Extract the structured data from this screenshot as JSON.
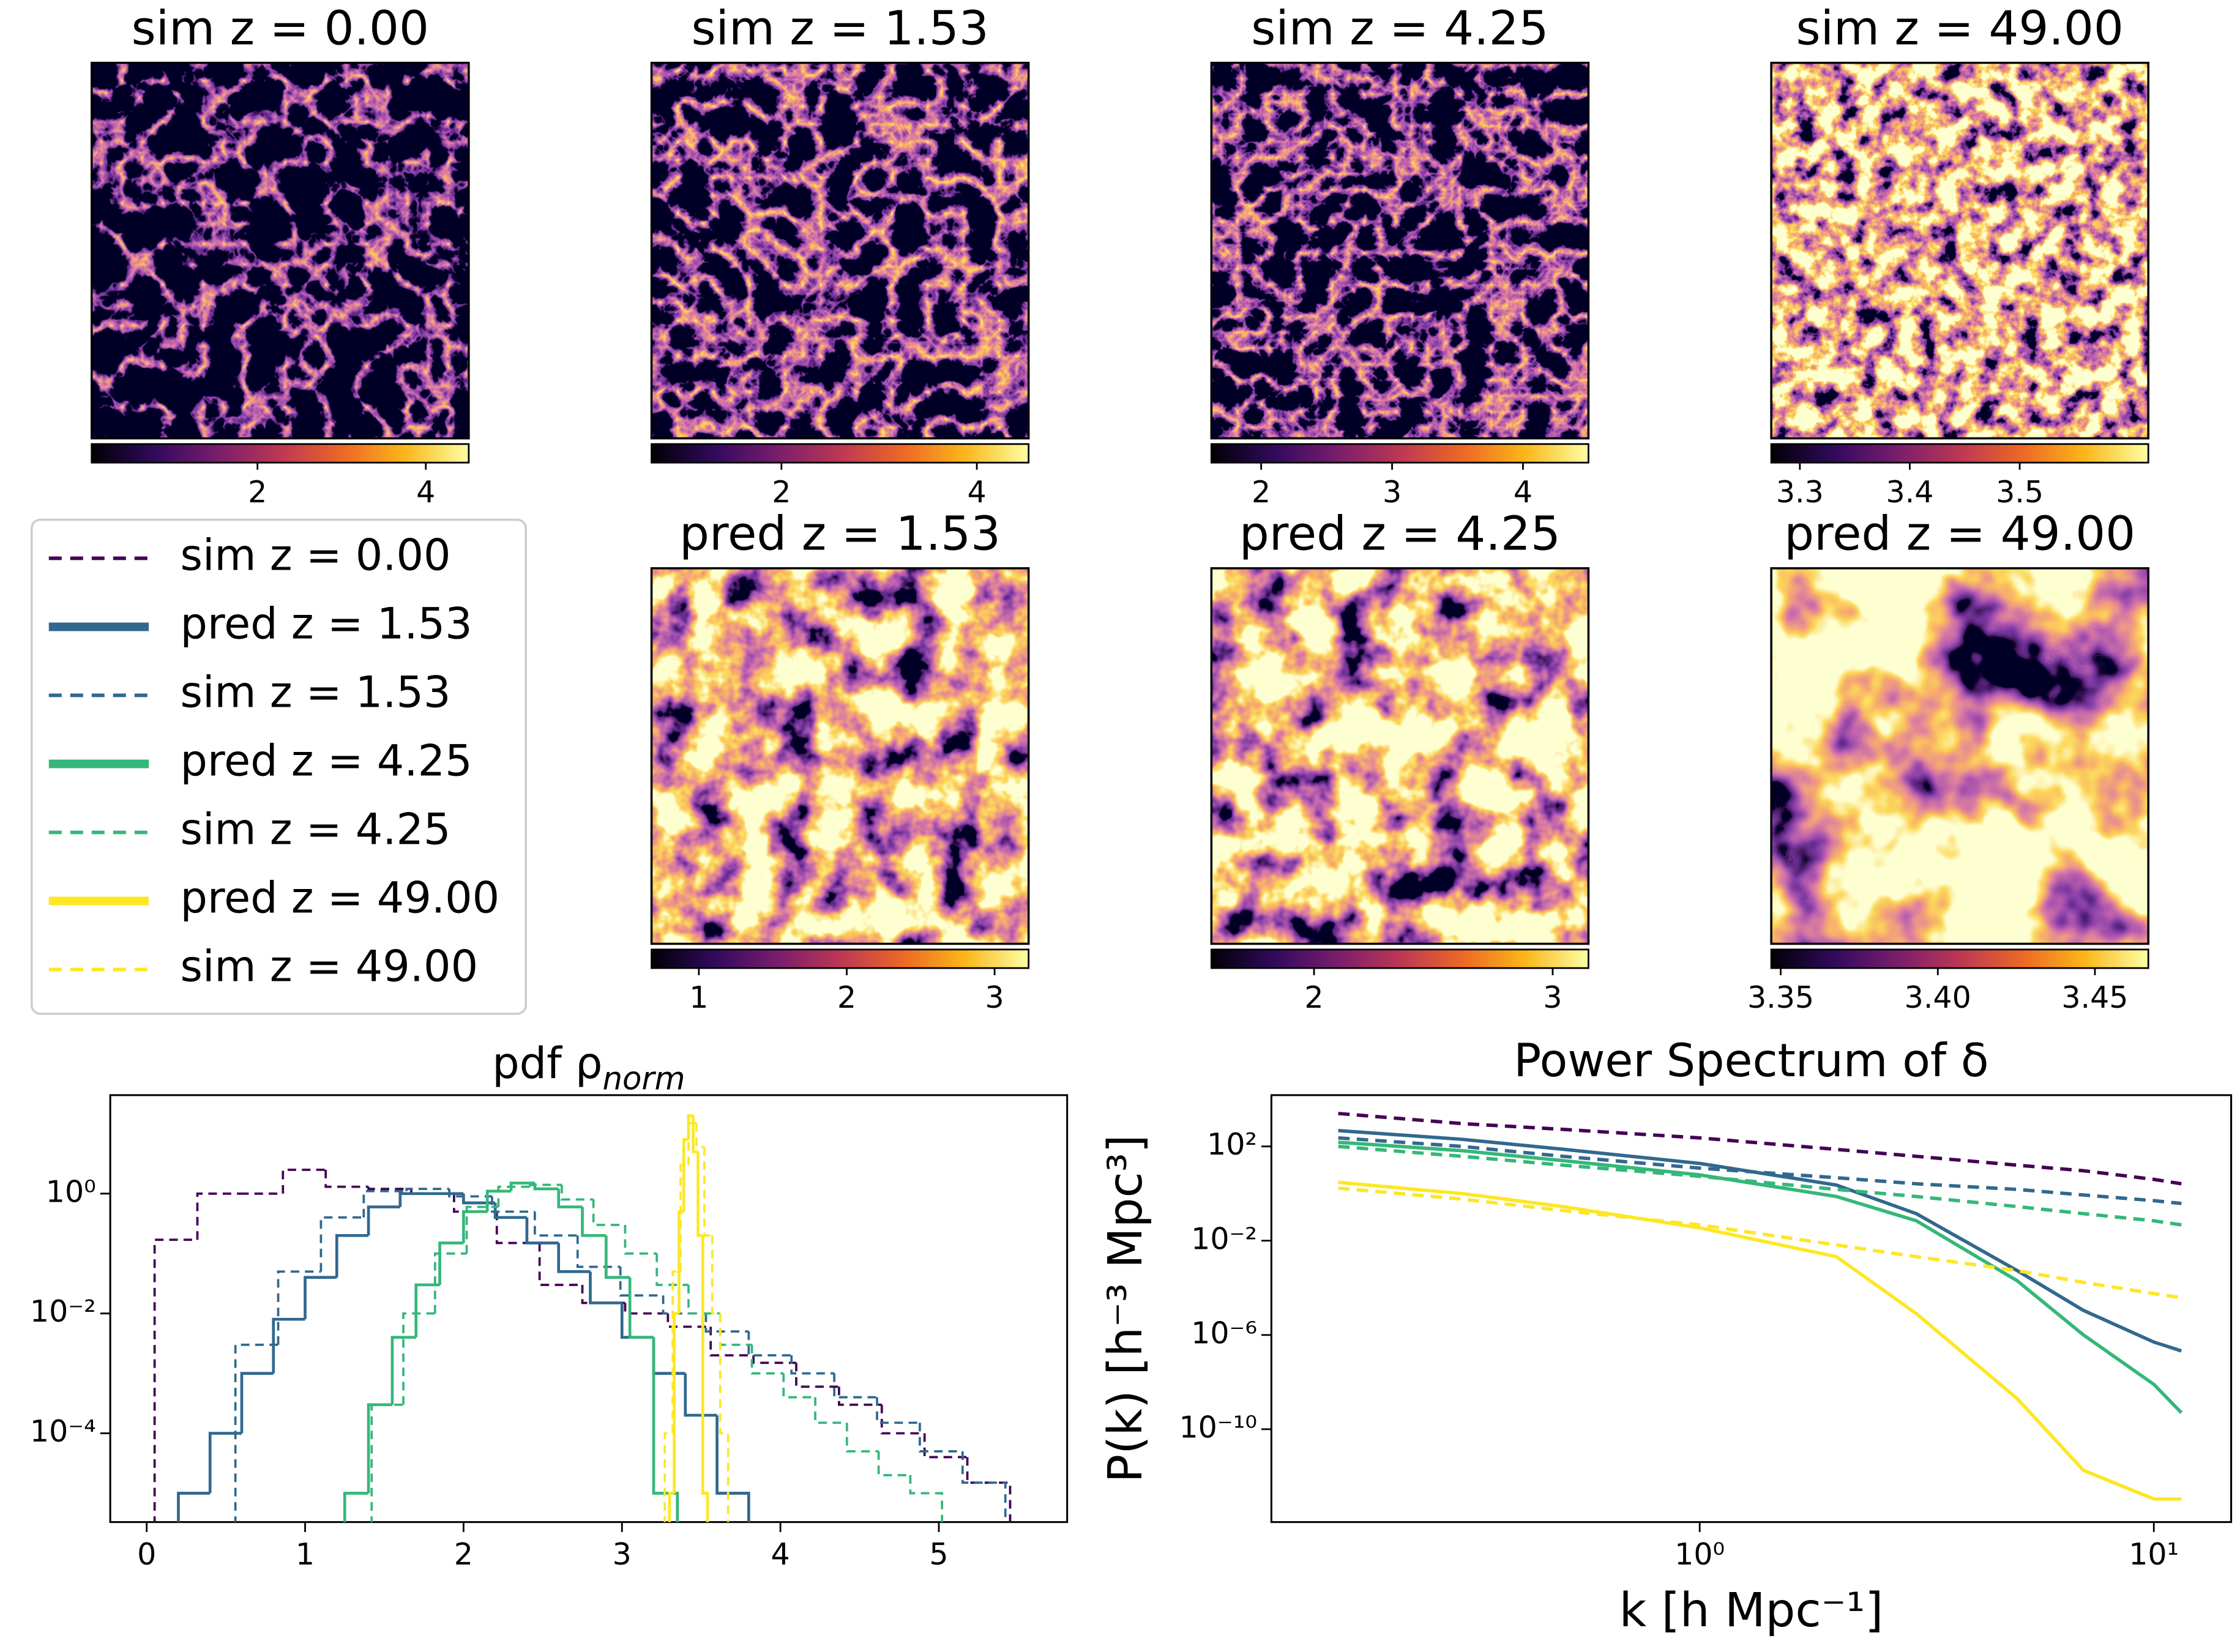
{
  "chart_data": [
    {
      "type": "heatmap",
      "title": "sim z = 0.00",
      "clim": [
        0.03,
        4.51
      ],
      "cticks": [
        2,
        4
      ]
    },
    {
      "type": "heatmap",
      "title": "sim z = 1.53",
      "clim": [
        0.67,
        4.53
      ],
      "cticks": [
        2,
        4
      ]
    },
    {
      "type": "heatmap",
      "title": "sim z = 4.25",
      "clim": [
        1.62,
        4.5
      ],
      "cticks": [
        2,
        3,
        4
      ]
    },
    {
      "type": "heatmap",
      "title": "sim z = 49.00",
      "clim": [
        3.274,
        3.617
      ],
      "cticks": [
        3.3,
        3.4,
        3.5
      ]
    },
    {
      "type": "heatmap",
      "title": "pred z = 1.53",
      "clim": [
        0.68,
        3.23
      ],
      "cticks": [
        1,
        2,
        3
      ]
    },
    {
      "type": "heatmap",
      "title": "pred z = 4.25",
      "clim": [
        1.57,
        3.15
      ],
      "cticks": [
        2,
        3
      ]
    },
    {
      "type": "heatmap",
      "title": "pred z = 49.00",
      "clim": [
        3.347,
        3.467
      ],
      "cticks": [
        3.35,
        {
          "value": 3.4,
          "label": "3.40"
        },
        3.45
      ]
    },
    {
      "type": "histogram",
      "title": "pdf ρ",
      "title_subscript": "norm",
      "yscale": "log",
      "xlim": [
        -0.23,
        5.81
      ],
      "xticks": [
        0,
        1,
        2,
        3,
        4,
        5
      ],
      "ylim": [
        3.3e-06,
        44
      ],
      "yticks": [
        {
          "value": 1,
          "label": "10⁰"
        },
        {
          "value": 0.01,
          "label": "10⁻²"
        },
        {
          "value": 0.0001,
          "label": "10⁻⁴"
        }
      ],
      "series": [
        {
          "name": "sim z = 0.00",
          "color": "#440154",
          "dashed": true,
          "bins": [
            0.05,
            0.32,
            0.59,
            0.86,
            1.13,
            1.4,
            1.67,
            1.94,
            2.21,
            2.48,
            2.75,
            3.02,
            3.29,
            3.56,
            3.83,
            4.1,
            4.37,
            4.64,
            4.91,
            5.18,
            5.45
          ],
          "values": [
            0.17,
            1.0,
            1.0,
            2.5,
            1.3,
            1.2,
            1.0,
            0.5,
            0.15,
            0.03,
            0.015,
            0.01,
            0.006,
            0.002,
            0.0015,
            0.0006,
            0.0003,
            0.0001,
            4e-05,
            1.5e-05
          ]
        },
        {
          "name": "pred z = 1.53",
          "color": "#31688e",
          "dashed": false,
          "bins": [
            0.2,
            0.4,
            0.6,
            0.8,
            1.0,
            1.2,
            1.4,
            1.6,
            1.8,
            2.0,
            2.2,
            2.4,
            2.6,
            2.8,
            3.0,
            3.2,
            3.4,
            3.6,
            3.8
          ],
          "values": [
            1e-05,
            0.0001,
            0.001,
            0.008,
            0.04,
            0.2,
            0.6,
            1.0,
            1.0,
            0.7,
            0.4,
            0.15,
            0.05,
            0.015,
            0.004,
            0.001,
            0.0002,
            1e-05
          ]
        },
        {
          "name": "sim z = 1.53",
          "color": "#31688e",
          "dashed": true,
          "bins": [
            0.56,
            0.83,
            1.1,
            1.37,
            1.64,
            1.91,
            2.18,
            2.45,
            2.72,
            2.99,
            3.26,
            3.53,
            3.8,
            4.07,
            4.34,
            4.61,
            4.88,
            5.15,
            5.42
          ],
          "values": [
            0.003,
            0.05,
            0.4,
            1.1,
            1.2,
            0.9,
            0.5,
            0.2,
            0.06,
            0.02,
            0.01,
            0.005,
            0.002,
            0.001,
            0.0004,
            0.00015,
            5e-05,
            1.5e-05
          ]
        },
        {
          "name": "pred z = 4.25",
          "color": "#35b779",
          "dashed": false,
          "bins": [
            1.25,
            1.4,
            1.55,
            1.7,
            1.85,
            2.0,
            2.15,
            2.3,
            2.45,
            2.6,
            2.75,
            2.9,
            3.05,
            3.2,
            3.35
          ],
          "values": [
            1e-05,
            0.0003,
            0.004,
            0.03,
            0.15,
            0.5,
            1.1,
            1.5,
            1.2,
            0.6,
            0.2,
            0.04,
            0.004,
            1e-05
          ]
        },
        {
          "name": "sim z = 4.25",
          "color": "#35b779",
          "dashed": true,
          "bins": [
            1.42,
            1.62,
            1.82,
            2.02,
            2.22,
            2.42,
            2.62,
            2.82,
            3.02,
            3.22,
            3.42,
            3.62,
            3.82,
            4.02,
            4.22,
            4.42,
            4.62,
            4.82,
            5.02
          ],
          "values": [
            0.0003,
            0.01,
            0.1,
            0.6,
            1.3,
            1.4,
            0.8,
            0.3,
            0.1,
            0.03,
            0.01,
            0.003,
            0.001,
            0.0004,
            0.00015,
            5e-05,
            2e-05,
            1e-05
          ]
        },
        {
          "name": "pred z = 49.00",
          "color": "#fde725",
          "dashed": false,
          "bins": [
            3.3,
            3.33,
            3.36,
            3.39,
            3.42,
            3.45,
            3.48,
            3.51,
            3.54
          ],
          "values": [
            1e-05,
            0.01,
            0.5,
            8,
            20,
            5,
            0.2,
            1e-05
          ]
        },
        {
          "name": "sim z = 49.00",
          "color": "#fde725",
          "dashed": true,
          "bins": [
            3.27,
            3.32,
            3.37,
            3.42,
            3.47,
            3.52,
            3.57,
            3.62,
            3.67
          ],
          "values": [
            0.0001,
            0.05,
            3,
            15,
            6,
            0.2,
            0.01,
            0.0001
          ]
        }
      ]
    },
    {
      "type": "line",
      "title": "Power Spectrum of δ",
      "xlabel": "k [h Mpc⁻¹]",
      "ylabel": "P(k) [h⁻³ Mpc³]",
      "xscale": "log",
      "yscale": "log",
      "x": [
        0.16,
        0.3,
        0.5,
        1,
        2,
        3,
        5,
        7,
        10,
        11.5
      ],
      "xlim": [
        0.114,
        14.8
      ],
      "xticks": [
        {
          "value": 1,
          "label": "10⁰"
        },
        {
          "value": 10,
          "label": "10¹"
        }
      ],
      "ylim": [
        1.15e-14,
        15000
      ],
      "yticks": [
        {
          "value": 100,
          "label": "10²"
        },
        {
          "value": 0.01,
          "label": "10⁻²"
        },
        {
          "value": 1e-06,
          "label": "10⁻⁶"
        },
        {
          "value": 1e-10,
          "label": "10⁻¹⁰"
        }
      ],
      "series": [
        {
          "color": "#440154",
          "dashed": true,
          "values": [
            2500,
            930,
            530,
            230,
            75,
            38,
            16,
            9.3,
            4,
            2.6
          ]
        },
        {
          "color": "#31688e",
          "dashed": false,
          "values": [
            470,
            200,
            76,
            19,
            2.3,
            0.14,
            0.00054,
            1.1e-05,
            5e-07,
            2.1e-07
          ]
        },
        {
          "color": "#31688e",
          "dashed": true,
          "values": [
            230,
            100,
            38,
            12,
            4.7,
            2.6,
            1.5,
            0.87,
            0.5,
            0.38
          ]
        },
        {
          "color": "#35b779",
          "dashed": false,
          "values": [
            150,
            66,
            25,
            6.2,
            0.75,
            0.07,
            0.0002,
            1e-06,
            8e-09,
            5e-10
          ]
        },
        {
          "color": "#35b779",
          "dashed": true,
          "values": [
            100,
            38,
            16,
            5.4,
            1.5,
            0.75,
            0.28,
            0.14,
            0.07,
            0.047
          ]
        },
        {
          "color": "#fde725",
          "dashed": false,
          "values": [
            3,
            1,
            0.28,
            0.035,
            0.0021,
            8e-06,
            2e-09,
            1.8e-12,
            1.1e-13,
            1.1e-13
          ]
        },
        {
          "color": "#fde725",
          "dashed": true,
          "values": [
            1.7,
            0.58,
            0.19,
            0.047,
            0.0066,
            0.0021,
            0.00054,
            0.00017,
            5.7e-05,
            3.8e-05
          ]
        }
      ]
    }
  ]
}
